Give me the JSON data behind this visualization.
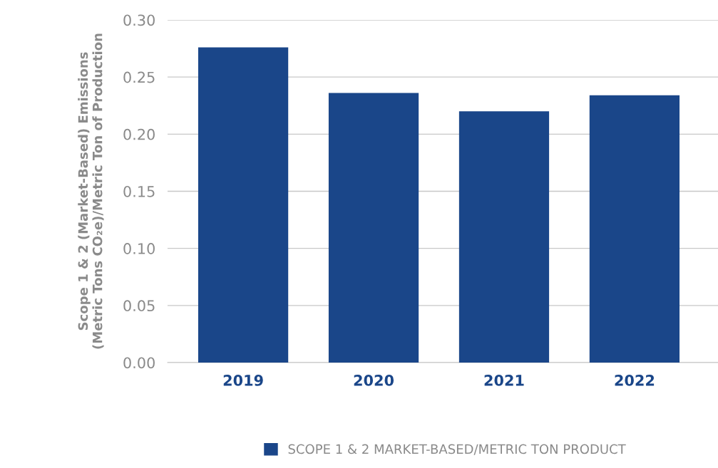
{
  "chart_data": {
    "type": "bar",
    "ylabel": "Scope 1 & 2 (Market-Based) Emissions\n(Metric Tons CO₂e)/Metric Ton of Production",
    "categories": [
      "2019",
      "2020",
      "2021",
      "2022"
    ],
    "series": [
      {
        "name": "SCOPE 1 & 2 MARKET-BASED/METRIC TON PRODUCT",
        "color": "#1a4689",
        "values": [
          0.276,
          0.236,
          0.22,
          0.234
        ]
      }
    ],
    "ylim": [
      0,
      0.3
    ],
    "yticks": [
      {
        "value": 0,
        "label": "0.00"
      },
      {
        "value": 0.05,
        "label": "0.05"
      },
      {
        "value": 0.1,
        "label": "0.10"
      },
      {
        "value": 0.15,
        "label": "0.15"
      },
      {
        "value": 0.2,
        "label": "0.20"
      },
      {
        "value": 0.25,
        "label": "0.25"
      },
      {
        "value": 0.3,
        "label": "0.30"
      }
    ],
    "grid": "y",
    "legend": "bottom"
  }
}
